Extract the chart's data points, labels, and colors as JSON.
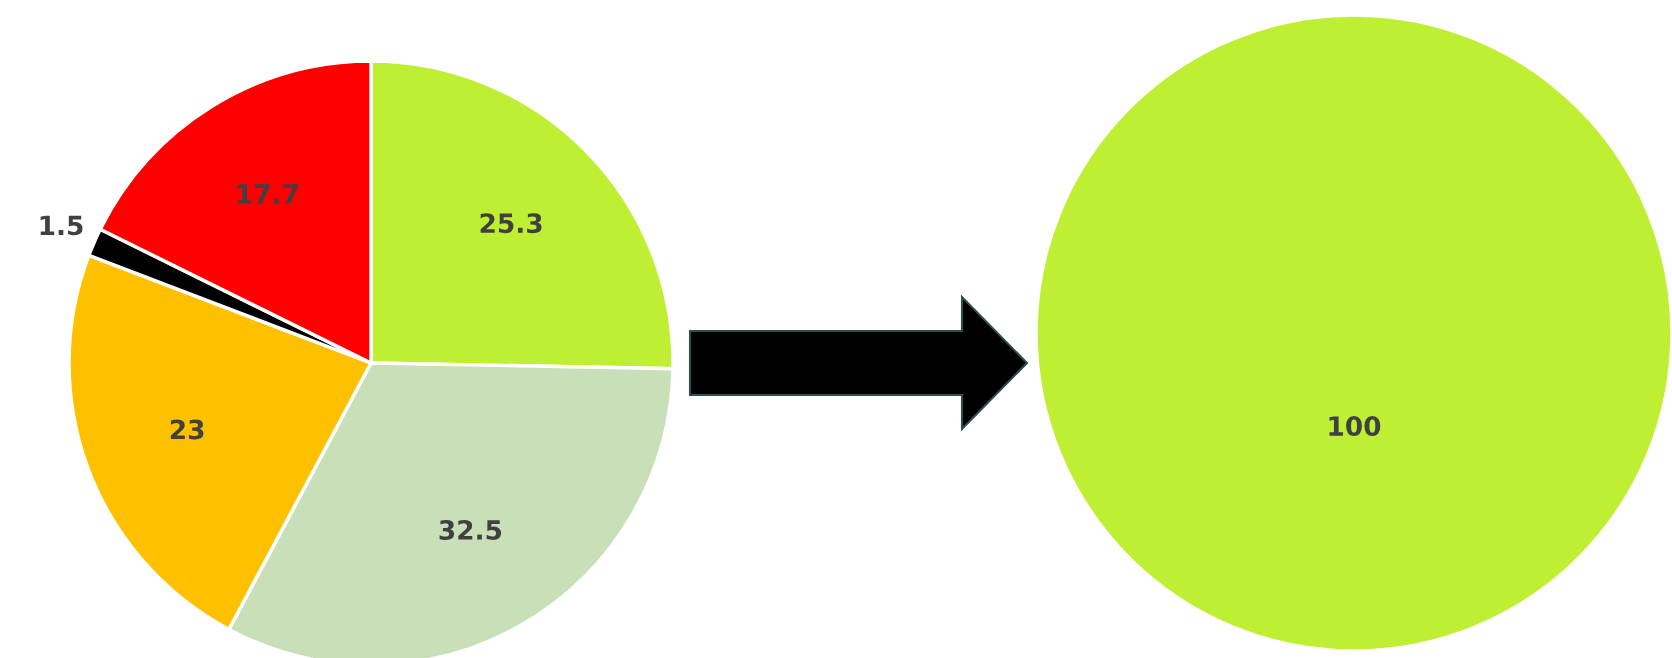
{
  "chart_data": [
    {
      "type": "pie",
      "categories": [
        null,
        null,
        null,
        null,
        null
      ],
      "values": [
        25.3,
        32.5,
        23,
        1.5,
        17.7
      ],
      "colors": [
        "#bfef33",
        "#c9dfb7",
        "#ffc000",
        "#000000",
        "#ff0000"
      ],
      "data_labels": true
    },
    {
      "type": "pie",
      "categories": [
        null
      ],
      "values": [
        100
      ],
      "colors": [
        "#bfef33"
      ],
      "data_labels": true
    }
  ]
}
